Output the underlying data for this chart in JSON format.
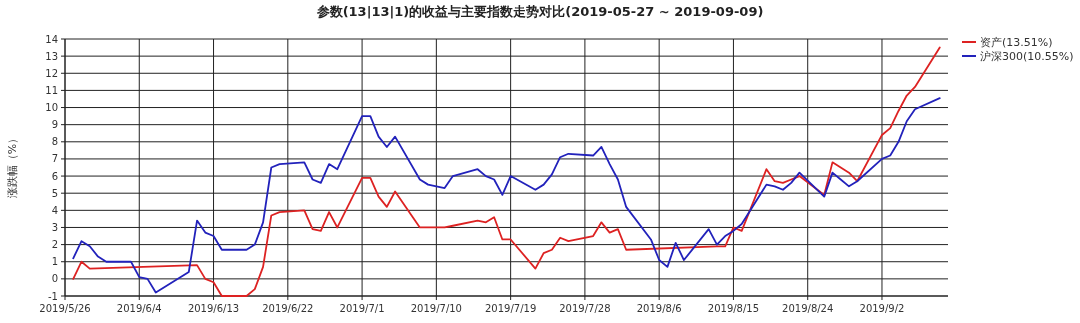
{
  "chart_data": {
    "type": "line",
    "title": "参数(13|13|1)的收益与主要指数走势对比(2019-05-27 ~ 2019-09-09)",
    "ylabel": "涨跌幅（%）",
    "xlim": [
      "2019-05-26",
      "2019-09-10"
    ],
    "xticks": [
      {
        "value": "2019-05-26",
        "label": "2019/5/26"
      },
      {
        "value": "2019-06-04",
        "label": "2019/6/4"
      },
      {
        "value": "2019-06-13",
        "label": "2019/6/13"
      },
      {
        "value": "2019-06-22",
        "label": "2019/6/22"
      },
      {
        "value": "2019-07-01",
        "label": "2019/7/1"
      },
      {
        "value": "2019-07-10",
        "label": "2019/7/10"
      },
      {
        "value": "2019-07-19",
        "label": "2019/7/19"
      },
      {
        "value": "2019-07-28",
        "label": "2019/7/28"
      },
      {
        "value": "2019-08-06",
        "label": "2019/8/6"
      },
      {
        "value": "2019-08-15",
        "label": "2019/8/15"
      },
      {
        "value": "2019-08-24",
        "label": "2019/8/24"
      },
      {
        "value": "2019-09-02",
        "label": "2019/9/2"
      }
    ],
    "ylim": [
      -1,
      14
    ],
    "yticks": [
      -1,
      0,
      1,
      2,
      3,
      4,
      5,
      6,
      7,
      8,
      9,
      10,
      11,
      12,
      13,
      14
    ],
    "grid": true,
    "legend": "top right",
    "series": [
      {
        "name": "资产(13.51%)",
        "color": "#dd2222",
        "x": [
          "2019-05-27",
          "2019-05-28",
          "2019-05-29",
          "2019-06-11",
          "2019-06-12",
          "2019-06-13",
          "2019-06-14",
          "2019-06-17",
          "2019-06-18",
          "2019-06-19",
          "2019-06-20",
          "2019-06-21",
          "2019-06-24",
          "2019-06-25",
          "2019-06-26",
          "2019-06-27",
          "2019-06-28",
          "2019-07-01",
          "2019-07-02",
          "2019-07-03",
          "2019-07-04",
          "2019-07-05",
          "2019-07-08",
          "2019-07-11",
          "2019-07-12",
          "2019-07-15",
          "2019-07-16",
          "2019-07-17",
          "2019-07-18",
          "2019-07-19",
          "2019-07-22",
          "2019-07-23",
          "2019-07-24",
          "2019-07-25",
          "2019-07-26",
          "2019-07-29",
          "2019-07-30",
          "2019-07-31",
          "2019-08-01",
          "2019-08-02",
          "2019-08-13",
          "2019-08-14",
          "2019-08-15",
          "2019-08-16",
          "2019-08-19",
          "2019-08-20",
          "2019-08-21",
          "2019-08-22",
          "2019-08-23",
          "2019-08-26",
          "2019-08-27",
          "2019-08-28",
          "2019-08-29",
          "2019-08-30",
          "2019-09-02",
          "2019-09-03",
          "2019-09-04",
          "2019-09-05",
          "2019-09-06",
          "2019-09-09"
        ],
        "values": [
          0.0,
          1.0,
          0.6,
          0.8,
          0.0,
          -0.2,
          -1.0,
          -1.0,
          -0.6,
          0.7,
          3.7,
          3.9,
          4.0,
          2.9,
          2.8,
          3.9,
          3.0,
          5.9,
          5.9,
          4.8,
          4.2,
          5.1,
          3.0,
          3.0,
          3.1,
          3.4,
          3.3,
          3.6,
          2.3,
          2.3,
          0.6,
          1.5,
          1.7,
          2.4,
          2.2,
          2.5,
          3.3,
          2.7,
          2.9,
          1.7,
          1.9,
          1.9,
          3.0,
          2.8,
          6.4,
          5.7,
          5.6,
          5.8,
          6.0,
          4.9,
          6.8,
          6.5,
          6.2,
          5.7,
          8.4,
          8.8,
          9.8,
          10.7,
          11.2,
          13.51
        ]
      },
      {
        "name": "沪深300(10.55%)",
        "color": "#2222bb",
        "x": [
          "2019-05-27",
          "2019-05-28",
          "2019-05-29",
          "2019-05-30",
          "2019-05-31",
          "2019-06-03",
          "2019-06-04",
          "2019-06-05",
          "2019-06-06",
          "2019-06-10",
          "2019-06-11",
          "2019-06-12",
          "2019-06-13",
          "2019-06-14",
          "2019-06-17",
          "2019-06-18",
          "2019-06-19",
          "2019-06-20",
          "2019-06-21",
          "2019-06-24",
          "2019-06-25",
          "2019-06-26",
          "2019-06-27",
          "2019-06-28",
          "2019-07-01",
          "2019-07-02",
          "2019-07-03",
          "2019-07-04",
          "2019-07-05",
          "2019-07-08",
          "2019-07-09",
          "2019-07-10",
          "2019-07-11",
          "2019-07-12",
          "2019-07-15",
          "2019-07-16",
          "2019-07-17",
          "2019-07-18",
          "2019-07-19",
          "2019-07-22",
          "2019-07-23",
          "2019-07-24",
          "2019-07-25",
          "2019-07-26",
          "2019-07-29",
          "2019-07-30",
          "2019-07-31",
          "2019-08-01",
          "2019-08-02",
          "2019-08-05",
          "2019-08-06",
          "2019-08-07",
          "2019-08-08",
          "2019-08-09",
          "2019-08-12",
          "2019-08-13",
          "2019-08-14",
          "2019-08-15",
          "2019-08-16",
          "2019-08-19",
          "2019-08-20",
          "2019-08-21",
          "2019-08-22",
          "2019-08-23",
          "2019-08-26",
          "2019-08-27",
          "2019-08-28",
          "2019-08-29",
          "2019-08-30",
          "2019-09-02",
          "2019-09-03",
          "2019-09-04",
          "2019-09-05",
          "2019-09-06",
          "2019-09-09"
        ],
        "values": [
          1.2,
          2.2,
          1.9,
          1.3,
          1.0,
          1.0,
          0.1,
          0.0,
          -0.8,
          0.4,
          3.4,
          2.7,
          2.5,
          1.7,
          1.7,
          2.0,
          3.3,
          6.5,
          6.7,
          6.8,
          5.8,
          5.6,
          6.7,
          6.4,
          9.5,
          9.5,
          8.3,
          7.7,
          8.3,
          5.8,
          5.5,
          5.4,
          5.3,
          6.0,
          6.4,
          6.0,
          5.8,
          4.9,
          6.0,
          5.2,
          5.5,
          6.1,
          7.1,
          7.3,
          7.2,
          7.7,
          6.7,
          5.8,
          4.2,
          2.3,
          1.1,
          0.7,
          2.1,
          1.1,
          2.9,
          2.0,
          2.5,
          2.8,
          3.2,
          5.5,
          5.4,
          5.2,
          5.6,
          6.2,
          4.8,
          6.2,
          5.8,
          5.4,
          5.7,
          7.0,
          7.2,
          8.0,
          9.2,
          9.9,
          10.55
        ]
      }
    ]
  }
}
